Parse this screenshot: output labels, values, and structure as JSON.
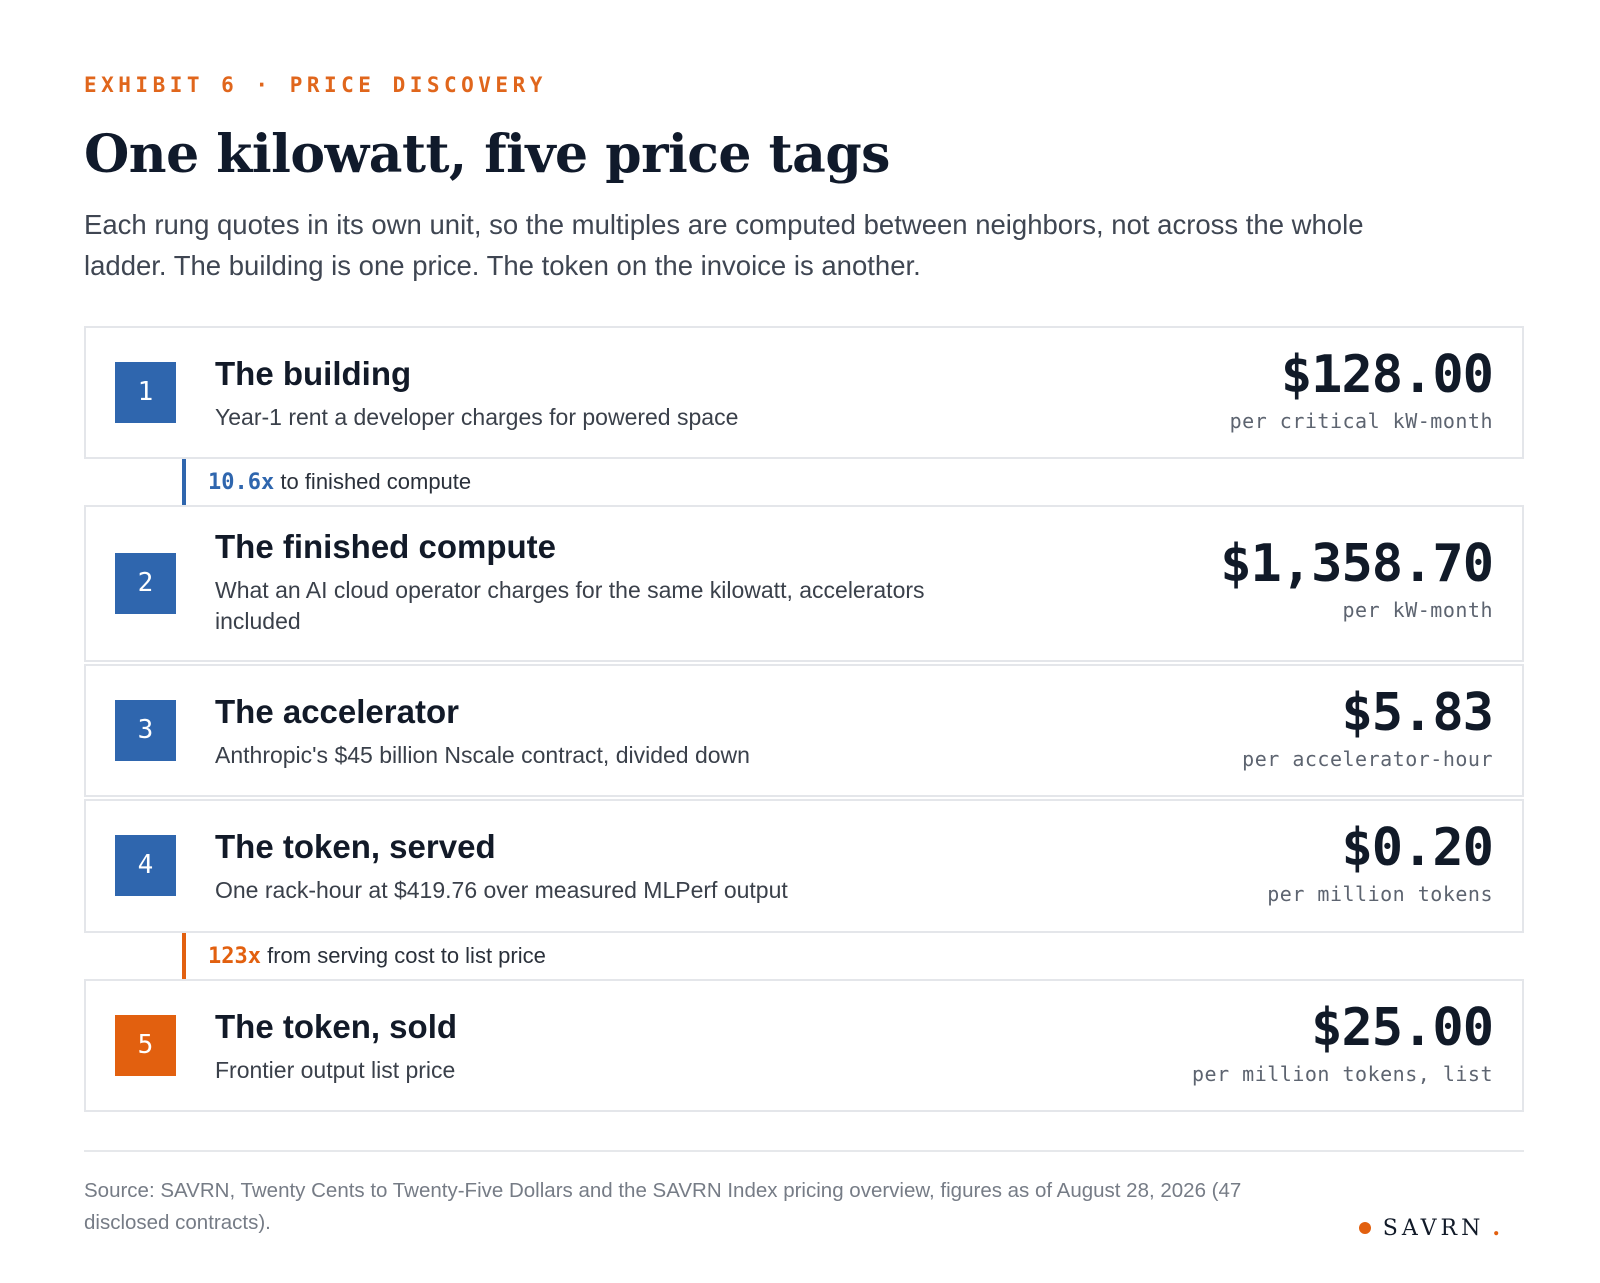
{
  "header": {
    "kicker": "EXHIBIT 6 · PRICE DISCOVERY",
    "title": "One kilowatt, five price tags",
    "subtitle": "Each rung quotes in its own unit, so the multiples are computed between neighbors, not across the whole ladder. The building is one price. The token on the invoice is another."
  },
  "rungs": [
    {
      "number": "1",
      "title": "The building",
      "description": "Year-1 rent a developer charges for powered space",
      "price": "$128.00",
      "unit": "per critical kW-month",
      "badge_color": "#2f66ae"
    },
    {
      "number": "2",
      "title": "The finished compute",
      "description": "What an AI cloud operator charges for the same kilowatt, accelerators included",
      "price": "$1,358.70",
      "unit": "per kW-month",
      "badge_color": "#2f66ae"
    },
    {
      "number": "3",
      "title": "The accelerator",
      "description": "Anthropic's $45 billion Nscale contract, divided down",
      "price": "$5.83",
      "unit": "per accelerator-hour",
      "badge_color": "#2f66ae"
    },
    {
      "number": "4",
      "title": "The token, served",
      "description": "One rack-hour at $419.76 over measured MLPerf output",
      "price": "$0.20",
      "unit": "per million tokens",
      "badge_color": "#2f66ae"
    },
    {
      "number": "5",
      "title": "The token, sold",
      "description": "Frontier output list price",
      "price": "$25.00",
      "unit": "per million tokens, list",
      "badge_color": "#e2600f"
    }
  ],
  "multiples": [
    {
      "value": "10.6x",
      "label": "to finished compute",
      "color": "#2f66ae"
    },
    {
      "value": "123x",
      "label": "from serving cost to list price",
      "color": "#e2600f"
    }
  ],
  "footer": {
    "source": "Source: SAVRN, Twenty Cents to Twenty-Five Dollars and the SAVRN Index pricing overview, figures as of August 28, 2026 (47 disclosed contracts).",
    "brand": "SAVRN",
    "brand_period": "."
  },
  "colors": {
    "accent_blue": "#2f66ae",
    "accent_orange": "#e2600f",
    "text_dark": "#101a2b"
  }
}
